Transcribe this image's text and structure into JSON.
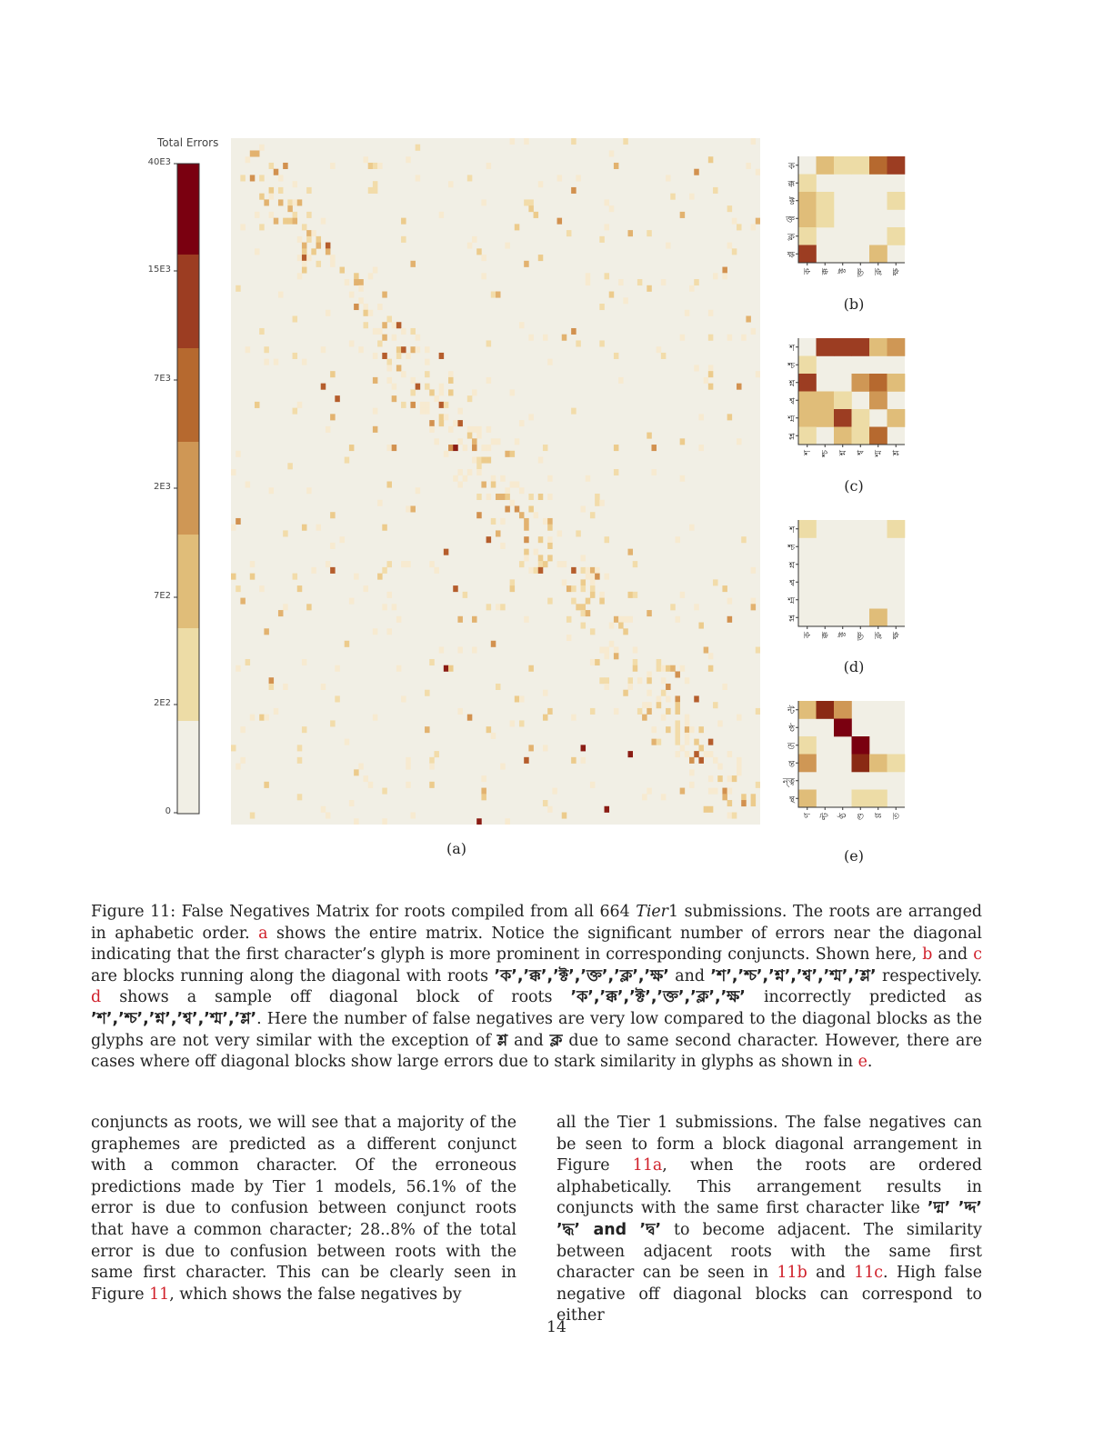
{
  "colorbar": {
    "title": "Total Errors",
    "ticks": [
      "40E3",
      "15E3",
      "7E3",
      "2E3",
      "7E2",
      "2E2",
      "0"
    ],
    "colors": [
      "#7a0010",
      "#9c3d22",
      "#b6692f",
      "#cf9755",
      "#e0bd79",
      "#eddca6",
      "#f1efe5"
    ]
  },
  "panels": {
    "a": {
      "label": "(a)"
    },
    "b": {
      "label": "(b)",
      "ylabels": [
        "ক",
        "ক্ক",
        "ক্ট",
        "ক্ত",
        "ক্ল",
        "ক্ষ"
      ],
      "xlabels": [
        "ক",
        "ক্ক",
        "ক্ট",
        "ক্ত",
        "ক্ল",
        "ক্ষ"
      ],
      "cells": [
        [
          0,
          2,
          1,
          1,
          4,
          5
        ],
        [
          1,
          0,
          0,
          0,
          0,
          0
        ],
        [
          2,
          1,
          0,
          0,
          0,
          1
        ],
        [
          2,
          1,
          0,
          0,
          0,
          0
        ],
        [
          1,
          0,
          0,
          0,
          0,
          1
        ],
        [
          5,
          0,
          0,
          0,
          2,
          0
        ]
      ]
    },
    "c": {
      "label": "(c)",
      "ylabels": [
        "শ",
        "শ্চ",
        "শ্ন",
        "শ্ব",
        "শ্ম",
        "শ্ল"
      ],
      "xlabels": [
        "শ",
        "শ্চ",
        "শ্ন",
        "শ্ব",
        "শ্ম",
        "শ্ল"
      ],
      "cells": [
        [
          0,
          5,
          5,
          5,
          2,
          3
        ],
        [
          1,
          0,
          0,
          0,
          0,
          0
        ],
        [
          5,
          0,
          0,
          3,
          4,
          2
        ],
        [
          2,
          2,
          1,
          0,
          3,
          0
        ],
        [
          2,
          2,
          5,
          1,
          0,
          2
        ],
        [
          1,
          0,
          2,
          1,
          4,
          0
        ]
      ]
    },
    "d": {
      "label": "(d)",
      "ylabels": [
        "শ",
        "শ্চ",
        "শ্ন",
        "শ্ব",
        "শ্ম",
        "শ্ল"
      ],
      "xlabels": [
        "ক",
        "ক্ক",
        "ক্ট",
        "ক্ত",
        "ক্ল",
        "ক্ষ"
      ],
      "cells": [
        [
          1,
          0,
          0,
          0,
          0,
          1
        ],
        [
          0,
          0,
          0,
          0,
          0,
          0
        ],
        [
          0,
          0,
          0,
          0,
          0,
          0
        ],
        [
          0,
          0,
          0,
          0,
          0,
          0
        ],
        [
          0,
          0,
          0,
          0,
          0,
          0
        ],
        [
          0,
          0,
          0,
          0,
          2,
          0
        ]
      ]
    },
    "e": {
      "label": "(e)",
      "ylabels": [
        "ন্ট",
        "ন্ঠ",
        "ন্ড",
        "ন্ত",
        "ন্ত্ব",
        "ন্থ"
      ],
      "xlabels": [
        "ণ",
        "ণ্ট",
        "ণ্ঠ",
        "ণ্ড",
        "ণ্ণ",
        "ত"
      ],
      "cells": [
        [
          2,
          6,
          3,
          0,
          0,
          0
        ],
        [
          0,
          0,
          7,
          0,
          0,
          0
        ],
        [
          1,
          0,
          0,
          7,
          0,
          0
        ],
        [
          3,
          0,
          0,
          6,
          2,
          1
        ],
        [
          0,
          0,
          0,
          0,
          0,
          0
        ],
        [
          2,
          0,
          0,
          1,
          1,
          0
        ]
      ]
    }
  },
  "caption": {
    "t1": "Figure 11: False Negatives Matrix for roots compiled from all 664 ",
    "tier": "Tier",
    "t2": "1 submissions. The roots are arranged in aphabetic order. ",
    "ra": "a",
    "t3": " shows the entire matrix. Notice the significant number of errors near the diagonal indicating that the first character’s glyph is more prominent in corresponding conjuncts. Shown here, ",
    "rb": "b",
    "t4": " and ",
    "rc": "c",
    "t5": " are blocks running along the diagonal with roots ",
    "bn1": "’ক’,’ক্ক’,’ক্ট’,’ক্ত’,’ক্ল’,’ক্ষ’",
    "t6": " and ",
    "bn2": "’শ’,’শ্চ’,’শ্ন’,’শ্ব’,’শ্ম’,’শ্ল’",
    "t7": " respectively. ",
    "rd": "d",
    "t8": " shows a sample off diagonal block of roots ",
    "bn3": "’ক’,’ক্ক’,’ক্ট’,’ক্ত’,’ক্ল’,’ক্ষ’",
    "t9": " incorrectly predicted as ",
    "bn4": "’শ’,’শ্চ’,’শ্ন’,’শ্ব’,’শ্ম’,’শ্ল’",
    "t10": ". Here the number of false negatives are very low compared to the diagonal blocks as the glyphs are not very similar with the exception of ",
    "bn5": "শ্ল",
    "t11": " and ",
    "bn6": "ক্ল",
    "t12": " due to same second character. However, there are cases where off diagonal blocks show large errors due to stark similarity in glyphs as shown in ",
    "re": "e",
    "t13": "."
  },
  "left_col": {
    "text": "conjuncts as roots, we will see that a majority of the graphemes are predicted as a different conjunct with a common character. Of the erroneous predictions made by Tier 1 models, 56.1% of the error is due to confusion between conjunct roots that have a common character; 28..8% of the total error is due to confusion between roots with the same first character. This can be clearly seen in Figure ",
    "ref": "11",
    "end": ", which shows the false negatives by"
  },
  "right_col": {
    "t1": "all the Tier 1 submissions. The false negatives can be seen to form a block diagonal arrangement in Figure ",
    "r1": "11a",
    "t2": ", when the roots are ordered alphabetically. This arrangement results in conjuncts with the same first character like ",
    "bn": "’দ্ম’ ’দ্দ’ ’দ্ধ’ and ’দ্ব’",
    "t3": " to become adjacent. The similarity between adjacent roots with the same first character can be seen in ",
    "r2": "11b",
    "t4": " and ",
    "r3": "11c",
    "t5": ". High false negative off diagonal blocks can correspond to either"
  },
  "page_number": "14"
}
